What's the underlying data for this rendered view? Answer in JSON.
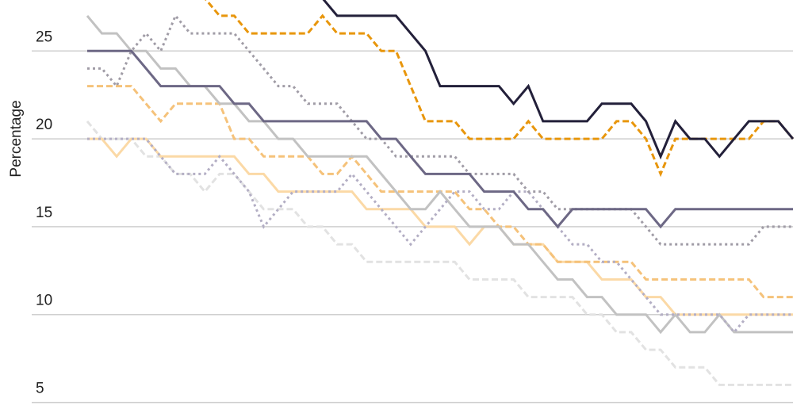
{
  "chart_data": {
    "type": "line",
    "y_label": "Percentage",
    "categories": [
      null,
      null,
      null,
      null,
      null,
      null,
      null,
      null,
      null,
      null,
      null,
      null,
      null,
      null,
      null,
      null,
      null,
      null,
      null,
      null,
      null,
      null,
      null,
      null,
      null,
      null,
      null,
      null,
      null,
      null,
      null,
      null,
      null,
      null,
      null,
      null,
      null,
      null,
      null,
      null,
      null,
      null,
      null,
      null,
      null,
      null,
      null,
      null,
      null
    ],
    "ylim": [
      4.8,
      27.9
    ],
    "yticks": [
      5,
      10,
      15,
      20,
      25
    ],
    "grid": true,
    "series": [
      {
        "color": "#e2e2e2",
        "dash": "dashed",
        "values": [
          21,
          20,
          20,
          20,
          19,
          19,
          18,
          18,
          17,
          18,
          18,
          17,
          16,
          16,
          16,
          15,
          15,
          14,
          14,
          13,
          13,
          13,
          13,
          13,
          13,
          13,
          12,
          12,
          12,
          12,
          11,
          11,
          11,
          11,
          10,
          10,
          9,
          9,
          8,
          8,
          7,
          7,
          7,
          6,
          6,
          6,
          6,
          6,
          6
        ]
      },
      {
        "color": "#fbd9a6",
        "dash": "solid",
        "values": [
          20,
          20,
          19,
          20,
          20,
          19,
          19,
          19,
          19,
          19,
          19,
          18,
          18,
          17,
          17,
          17,
          17,
          17,
          17,
          16,
          16,
          16,
          16,
          15,
          15,
          15,
          14,
          15,
          15,
          14,
          14,
          14,
          13,
          13,
          13,
          12,
          12,
          12,
          11,
          11,
          10,
          10,
          10,
          10,
          10,
          10,
          10,
          10,
          10
        ]
      },
      {
        "color": "#f5c27a",
        "dash": "dashed",
        "values": [
          23,
          23,
          23,
          23,
          22,
          21,
          22,
          22,
          22,
          22,
          20,
          20,
          19,
          19,
          19,
          19,
          18,
          18,
          19,
          18,
          17,
          17,
          17,
          17,
          17,
          17,
          16,
          16,
          15,
          15,
          14,
          14,
          13,
          13,
          13,
          13,
          13,
          13,
          12,
          12,
          12,
          12,
          12,
          12,
          12,
          12,
          11,
          11,
          11
        ]
      },
      {
        "color": "#c2c2c2",
        "dash": "solid",
        "values": [
          27,
          26,
          26,
          25,
          25,
          24,
          24,
          23,
          23,
          22,
          22,
          21,
          21,
          20,
          20,
          19,
          19,
          19,
          19,
          19,
          18,
          17,
          16,
          16,
          17,
          16,
          15,
          15,
          15,
          14,
          14,
          13,
          12,
          12,
          11,
          11,
          10,
          10,
          10,
          9,
          10,
          9,
          9,
          10,
          9,
          9,
          9,
          9,
          9
        ]
      },
      {
        "color": "#b3aec4",
        "dash": "dotted",
        "values": [
          20,
          20,
          20,
          20,
          20,
          19,
          18,
          18,
          18,
          19,
          18,
          17,
          15,
          16,
          17,
          17,
          17,
          17,
          18,
          17,
          16,
          15,
          14,
          15,
          16,
          17,
          17,
          16,
          16,
          17,
          17,
          16,
          15,
          14,
          14,
          13,
          13,
          12,
          11,
          10,
          10,
          10,
          10,
          10,
          9,
          10,
          10,
          10,
          10
        ]
      },
      {
        "color": "#a09ca6",
        "dash": "dotted",
        "values": [
          24,
          24,
          23,
          25,
          26,
          25,
          27,
          26,
          26,
          26,
          26,
          25,
          24,
          23,
          23,
          22,
          22,
          22,
          21,
          20,
          20,
          19,
          19,
          19,
          19,
          19,
          18,
          18,
          18,
          18,
          17,
          17,
          16,
          16,
          16,
          16,
          16,
          16,
          15,
          14,
          14,
          14,
          14,
          14,
          14,
          14,
          15,
          15,
          15
        ]
      },
      {
        "color": "#6d6885",
        "dash": "solid",
        "values": [
          25,
          25,
          25,
          25,
          24,
          23,
          23,
          23,
          23,
          23,
          22,
          22,
          21,
          21,
          21,
          21,
          21,
          21,
          21,
          21,
          20,
          20,
          19,
          18,
          18,
          18,
          18,
          17,
          17,
          17,
          16,
          16,
          15,
          16,
          16,
          16,
          16,
          16,
          16,
          15,
          16,
          16,
          16,
          16,
          16,
          16,
          16,
          16,
          16
        ]
      },
      {
        "color": "#e8960c",
        "dash": "dashed",
        "values": [
          null,
          null,
          null,
          null,
          null,
          null,
          null,
          29,
          28,
          27,
          27,
          26,
          26,
          26,
          26,
          26,
          27,
          26,
          26,
          26,
          25,
          25,
          23,
          21,
          21,
          21,
          20,
          20,
          20,
          20,
          21,
          20,
          20,
          20,
          20,
          20,
          21,
          21,
          20,
          18,
          20,
          20,
          20,
          20,
          20,
          20,
          21,
          21,
          20
        ]
      },
      {
        "color": "#23203a",
        "dash": "solid",
        "values": [
          null,
          null,
          null,
          null,
          null,
          null,
          null,
          null,
          null,
          null,
          null,
          null,
          null,
          null,
          null,
          29,
          28,
          27,
          27,
          27,
          27,
          27,
          26,
          25,
          23,
          23,
          23,
          23,
          23,
          22,
          23,
          21,
          21,
          21,
          21,
          22,
          22,
          22,
          21,
          19,
          21,
          20,
          20,
          19,
          20,
          21,
          21,
          21,
          20
        ]
      }
    ]
  }
}
